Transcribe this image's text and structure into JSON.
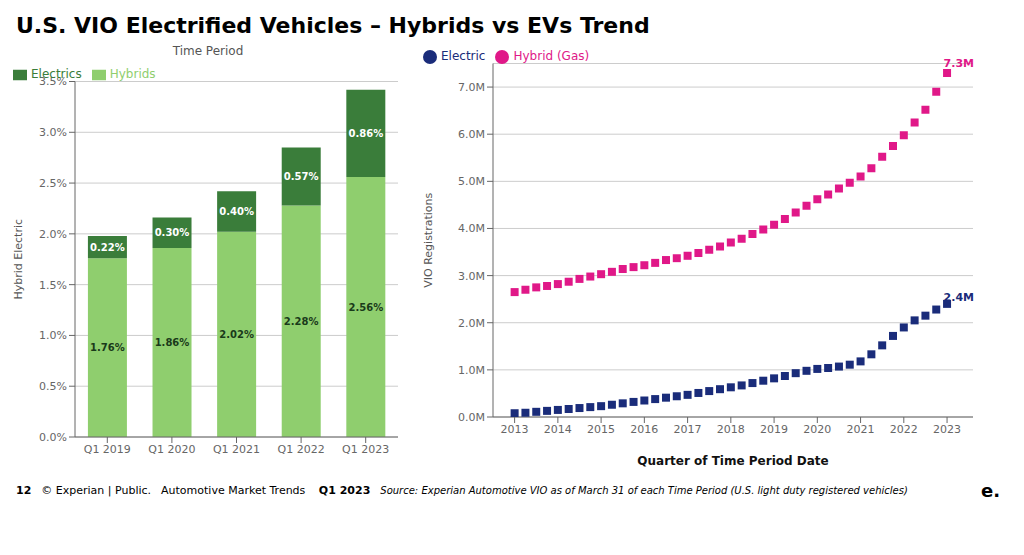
{
  "title": "U.S. VIO Electrified Vehicles – Hybrids vs EVs Trend",
  "annotations": [
    {
      "text": "12"
    },
    {
      "text": "© Experian | Public."
    },
    {
      "text": "Automotive Market Trends "
    },
    {
      "text": "Q1 2023"
    },
    {
      "text": "Source: Experian Automotive VIO as of March 31 of each Time Period (U.S. light duty registered vehicles)"
    },
    {
      "text": "e."
    }
  ],
  "chart_data": [
    {
      "type": "bar",
      "title": "Time Period",
      "y_label": "Hybrid Electric",
      "categories": [
        "Q1 2019",
        "Q1 2020",
        "Q1 2021",
        "Q1 2022",
        "Q1 2023"
      ],
      "stacked": true,
      "data_labels": true,
      "series": [
        {
          "name": "Hybrids",
          "color": "#8fce6e",
          "values": [
            1.76,
            1.86,
            2.02,
            2.28,
            2.56
          ],
          "value_labels": [
            "1.76%",
            "1.86%",
            "2.02%",
            "2.28%",
            "2.56%"
          ]
        },
        {
          "name": "Electrics",
          "color": "#3a7d3a",
          "values": [
            0.22,
            0.3,
            0.4,
            0.57,
            0.86
          ],
          "value_labels": [
            "0.22%",
            "0.30%",
            "0.40%",
            "0.57%",
            "0.86%"
          ]
        }
      ],
      "ylim": [
        0.0,
        3.5
      ],
      "yticks": [
        {
          "value": 0.0,
          "label": "0.0%"
        },
        {
          "value": 0.5,
          "label": "0.5%"
        },
        {
          "value": 1.0,
          "label": "1.0%"
        },
        {
          "value": 1.5,
          "label": "1.5%"
        },
        {
          "value": 2.0,
          "label": "2.0%"
        },
        {
          "value": 2.5,
          "label": "2.5%"
        },
        {
          "value": 3.0,
          "label": "3.0%"
        },
        {
          "value": 3.5,
          "label": "3.5%"
        }
      ],
      "grid": true,
      "legend": "upper left"
    },
    {
      "type": "scatter",
      "x_label": "Quarter of Time Period Date",
      "y_label": "VIO Registrations",
      "marker": "square",
      "x": [
        2013,
        2013.25,
        2013.5,
        2013.75,
        2014,
        2014.25,
        2014.5,
        2014.75,
        2015,
        2015.25,
        2015.5,
        2015.75,
        2016,
        2016.25,
        2016.5,
        2016.75,
        2017,
        2017.25,
        2017.5,
        2017.75,
        2018,
        2018.25,
        2018.5,
        2018.75,
        2019,
        2019.25,
        2019.5,
        2019.75,
        2020,
        2020.25,
        2020.5,
        2020.75,
        2021,
        2021.25,
        2021.5,
        2021.75,
        2022,
        2022.25,
        2022.5,
        2022.75,
        2023
      ],
      "series": [
        {
          "name": "Hybrid (Gas)",
          "color": "#e01888",
          "values": [
            2.65,
            2.7,
            2.75,
            2.78,
            2.82,
            2.87,
            2.93,
            2.98,
            3.03,
            3.08,
            3.14,
            3.18,
            3.22,
            3.27,
            3.33,
            3.37,
            3.42,
            3.48,
            3.55,
            3.62,
            3.7,
            3.78,
            3.88,
            3.98,
            4.08,
            4.2,
            4.34,
            4.48,
            4.62,
            4.72,
            4.85,
            4.97,
            5.1,
            5.28,
            5.52,
            5.75,
            5.98,
            6.25,
            6.52,
            6.9,
            7.3
          ]
        },
        {
          "name": "Electric",
          "color": "#1a2c7a",
          "values": [
            0.08,
            0.09,
            0.11,
            0.13,
            0.15,
            0.17,
            0.19,
            0.21,
            0.23,
            0.26,
            0.29,
            0.32,
            0.35,
            0.38,
            0.41,
            0.44,
            0.47,
            0.51,
            0.55,
            0.59,
            0.63,
            0.67,
            0.72,
            0.77,
            0.82,
            0.87,
            0.93,
            0.98,
            1.02,
            1.04,
            1.07,
            1.11,
            1.18,
            1.33,
            1.52,
            1.72,
            1.9,
            2.05,
            2.15,
            2.28,
            2.4
          ]
        }
      ],
      "xlim": [
        2012.5,
        2023.6
      ],
      "xticks": [
        2013,
        2014,
        2015,
        2016,
        2017,
        2018,
        2019,
        2020,
        2021,
        2022,
        2023
      ],
      "ylim": [
        0,
        7.5
      ],
      "yticks": [
        {
          "value": 0.0,
          "label": "0.0M"
        },
        {
          "value": 1.0,
          "label": "1.0M"
        },
        {
          "value": 2.0,
          "label": "2.0M"
        },
        {
          "value": 3.0,
          "label": "3.0M"
        },
        {
          "value": 4.0,
          "label": "4.0M"
        },
        {
          "value": 5.0,
          "label": "5.0M"
        },
        {
          "value": 6.0,
          "label": "6.0M"
        },
        {
          "value": 7.0,
          "label": "7.0M"
        }
      ],
      "grid": true,
      "legend": "upper left",
      "annotations": [
        {
          "text": "7.3M",
          "x": 2022.92,
          "y": 7.38,
          "color": "#e01888"
        },
        {
          "text": "2.4M",
          "x": 2022.92,
          "y": 2.42,
          "color": "#1a2c7a"
        }
      ]
    }
  ]
}
